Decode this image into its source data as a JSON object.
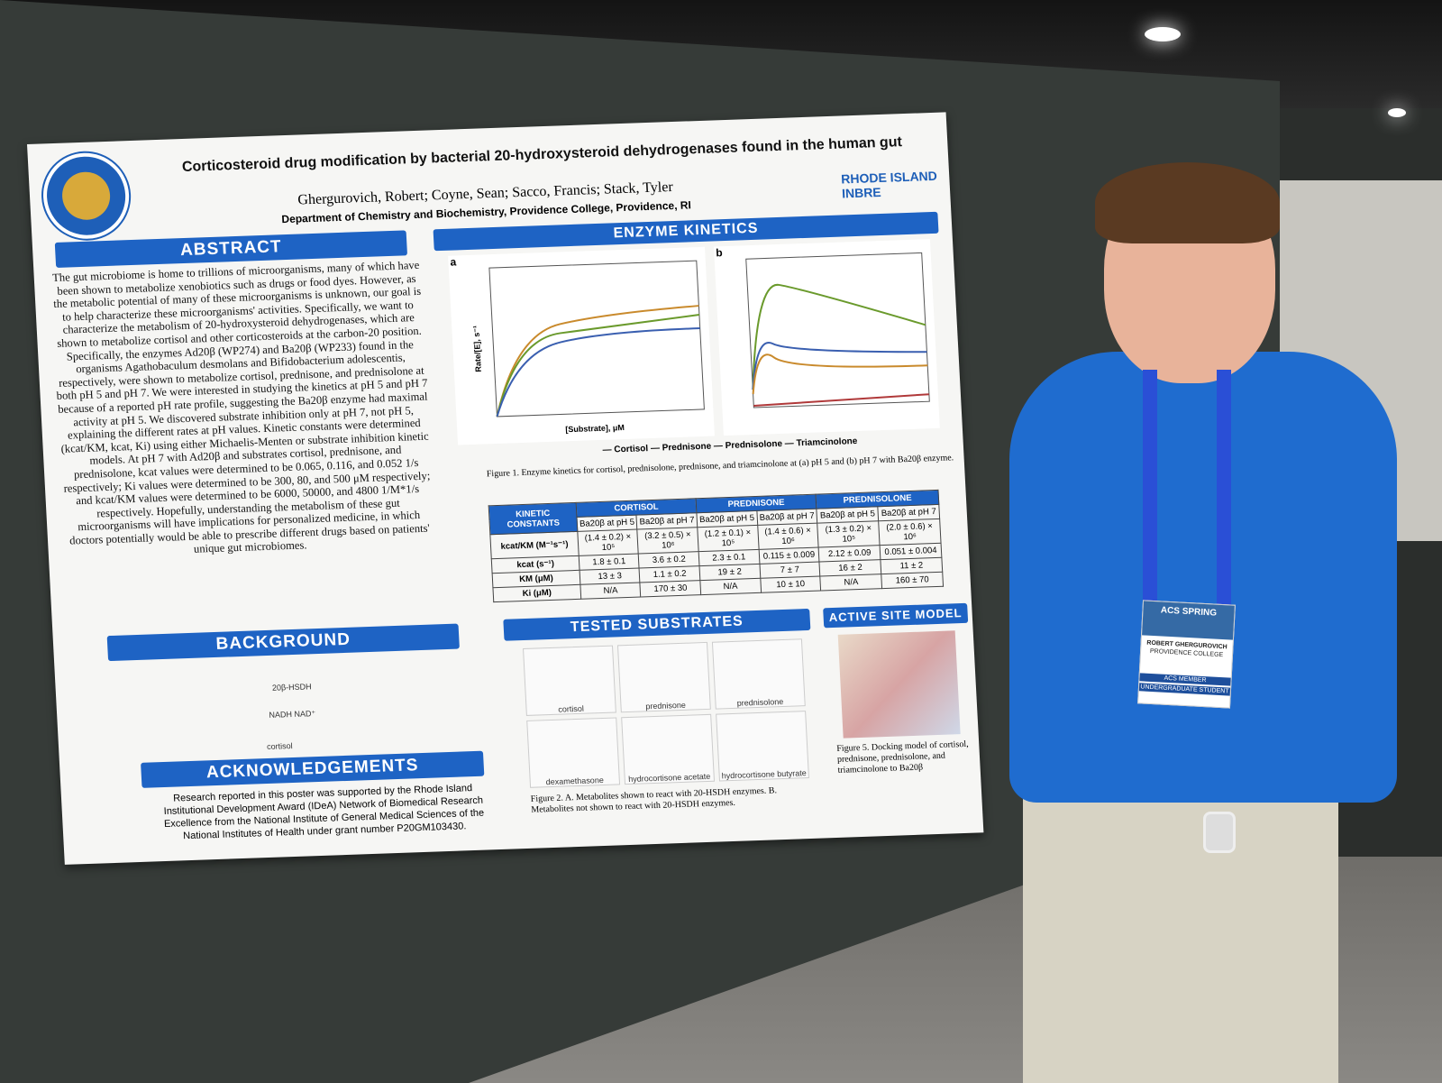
{
  "poster": {
    "logo_text": "CHEMISTRY & BIOCHEMISTRY · PROVIDENCE COLLEGE",
    "title": "Corticosteroid drug modification by bacterial 20-hydroxysteroid dehydrogenases found in the human gut",
    "authors": "Ghergurovich, Robert; Coyne, Sean; Sacco, Francis; Stack, Tyler",
    "department": "Department of Chemistry and Biochemistry, Providence College, Providence, RI",
    "inbre_logo": "RHODE ISLAND INBRE",
    "abstract_header": "ABSTRACT",
    "abstract_text": "The gut microbiome is home to trillions of microorganisms, many of which have been shown to metabolize xenobiotics such as drugs or food dyes. However, as the metabolic potential of many of these microorganisms is unknown, our goal is to help characterize these microorganisms' activities. Specifically, we want to characterize the metabolism of 20-hydroxysteroid dehydrogenases, which are shown to metabolize cortisol and other corticosteroids at the carbon-20 position. Specifically, the enzymes Ad20β (WP274) and Ba20β (WP233) found in the organisms Agathobaculum desmolans and Bifidobacterium adolescentis, respectively, were shown to metabolize cortisol, prednisone, and prednisolone at both pH 5 and pH 7. We were interested in studying the kinetics at pH 5 and pH 7 because of a reported pH rate profile, suggesting the Ba20β enzyme had maximal activity at pH 5. We discovered substrate inhibition only at pH 7, not pH 5, explaining the different rates at pH values. Kinetic constants were determined (kcat/KM, kcat, Ki) using either Michaelis-Menten or substrate inhibition kinetic models. At pH 7 with Ad20β and substrates cortisol, prednisone, and prednisolone, kcat values were determined to be 0.065, 0.116, and 0.052 1/s respectively; Ki values were determined to be 300, 80, and 500 μM respectively; and kcat/KM values were determined to be 6000, 50000, and 4800 1/M*1/s respectively. Hopefully, understanding the metabolism of these gut microorganisms will have implications for personalized medicine, in which doctors potentially would be able to prescribe different drugs based on patients' unique gut microbiomes.",
    "kinetics_header": "ENZYME KINETICS",
    "chart_a_label": "a",
    "chart_b_label": "b",
    "y_label": "Rate/[E], s⁻¹",
    "x_label": "[Substrate], μM",
    "legend": "— Cortisol — Prednisone — Prednisolone — Triamcinolone",
    "figure1_caption": "Figure 1. Enzyme kinetics for cortisol, prednisolone, prednisone, and triamcinolone at (a) pH 5 and (b) pH 7 with Ba20β enzyme.",
    "table": {
      "corner": "KINETIC CONSTANTS",
      "groups": [
        "CORTISOL",
        "PREDNISONE",
        "PREDNISOLONE"
      ],
      "subheaders": [
        "Ba20β at pH 5",
        "Ba20β at pH 7",
        "Ba20β at pH 5",
        "Ba20β at pH 7",
        "Ba20β at pH 5",
        "Ba20β at pH 7"
      ],
      "rows": [
        {
          "label": "kcat/KM (M⁻¹s⁻¹)",
          "cells": [
            "(1.4 ± 0.2) × 10⁵",
            "(3.2 ± 0.5) × 10⁶",
            "(1.2 ± 0.1) × 10⁵",
            "(1.4 ± 0.6) × 10⁶",
            "(1.3 ± 0.2) × 10⁵",
            "(2.0 ± 0.6) × 10⁶"
          ]
        },
        {
          "label": "kcat (s⁻¹)",
          "cells": [
            "1.8 ± 0.1",
            "3.6 ± 0.2",
            "2.3 ± 0.1",
            "0.115 ± 0.009",
            "2.12 ± 0.09",
            "0.051 ± 0.004"
          ]
        },
        {
          "label": "KM (μM)",
          "cells": [
            "13 ± 3",
            "1.1 ± 0.2",
            "19 ± 2",
            "7 ± 7",
            "16 ± 2",
            "11 ± 2"
          ]
        },
        {
          "label": "Ki (μM)",
          "cells": [
            "N/A",
            "170 ± 30",
            "N/A",
            "10 ± 10",
            "N/A",
            "160 ± 70"
          ]
        }
      ]
    },
    "background_header": "BACKGROUND",
    "background_labels": {
      "enzyme": "20β-HSDH",
      "cofactors": "NADH   NAD⁺",
      "substrate": "cortisol"
    },
    "substrates_header": "TESTED SUBSTRATES",
    "substrates": [
      "cortisol",
      "prednisone",
      "prednisolone",
      "dexamethasone",
      "hydrocortisone acetate",
      "hydrocortisone butyrate"
    ],
    "figure2_caption": "Figure 2. A. Metabolites shown to react with 20-HSDH enzymes. B. Metabolites not shown to react with 20-HSDH enzymes.",
    "active_site_header": "ACTIVE SITE MODEL",
    "figure5_caption": "Figure 5. Docking model of cortisol, prednisone, prednisolone, and triamcinolone to Ba20β",
    "ack_header": "ACKNOWLEDGEMENTS",
    "ack_text": "Research reported in this poster was supported by the Rhode Island Institutional Development Award (IDeA) Network of Biomedical Research Excellence from the National Institute of General Medical Sciences of the National Institutes of Health under grant number P20GM103430."
  },
  "badge": {
    "event": "ACS SPRING",
    "name": "ROBERT GHERGUROVICH",
    "school": "PROVIDENCE COLLEGE",
    "membership": "ACS MEMBER",
    "status": "UNDERGRADUATE STUDENT"
  },
  "colors": {
    "poster_blue": "#1e63c4",
    "shirt": "#1f6ccf",
    "cortisol": "#3a5fb0",
    "prednisone": "#c98a2c",
    "prednisolone": "#6a9a2c",
    "triamcinolone": "#b0393a"
  }
}
